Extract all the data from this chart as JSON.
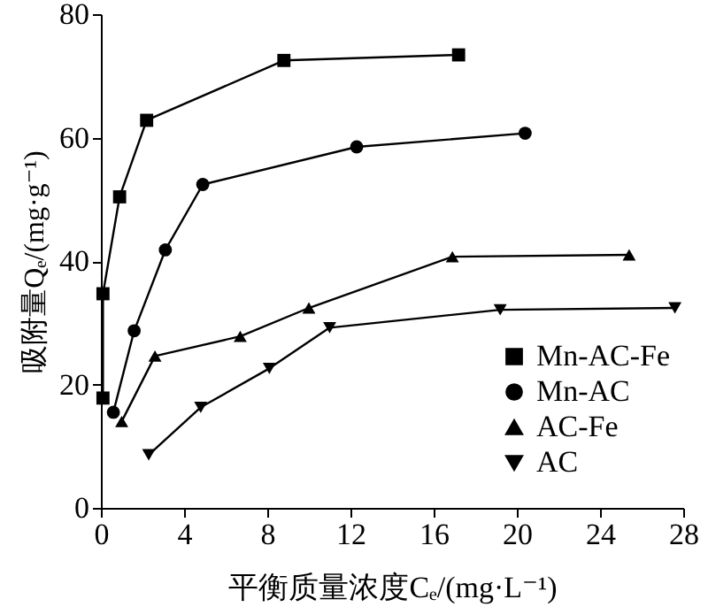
{
  "chart_data": {
    "type": "line",
    "xlabel": "平衡质量浓度Cₑ/(mg·L⁻¹)",
    "ylabel": "吸附量Qₑ/(mg·g⁻¹)",
    "xlim": [
      0,
      28
    ],
    "xticks": [
      0,
      4,
      8,
      12,
      16,
      20,
      24,
      28
    ],
    "ylim": [
      0,
      80
    ],
    "yticks": [
      0,
      20,
      40,
      60,
      80
    ],
    "legend": "bottom right",
    "grid": false,
    "series": [
      {
        "name": "Mn-AC-Fe",
        "color": "#000000",
        "marker": "square",
        "x": [
          0.1,
          0.1,
          0.9,
          2.2,
          8.8,
          17.2
        ],
        "values": [
          17.8,
          34.7,
          50.4,
          62.8,
          72.5,
          73.4
        ]
      },
      {
        "name": "Mn-AC",
        "color": "#000000",
        "marker": "circle",
        "x": [
          0.6,
          1.6,
          3.1,
          4.9,
          12.3,
          20.4
        ],
        "values": [
          15.5,
          28.7,
          41.8,
          52.4,
          58.5,
          60.7
        ]
      },
      {
        "name": "AC-Fe",
        "color": "#000000",
        "marker": "triangle",
        "x": [
          1.0,
          2.6,
          6.7,
          10.0,
          16.9,
          25.4
        ],
        "values": [
          14.0,
          24.6,
          27.8,
          32.4,
          40.7,
          41.0
        ]
      },
      {
        "name": "AC",
        "color": "#000000",
        "marker": "triangle-down",
        "x": [
          2.3,
          4.8,
          8.1,
          11.0,
          19.2,
          27.6
        ],
        "values": [
          8.6,
          16.3,
          22.6,
          29.2,
          32.1,
          32.4
        ]
      }
    ]
  }
}
